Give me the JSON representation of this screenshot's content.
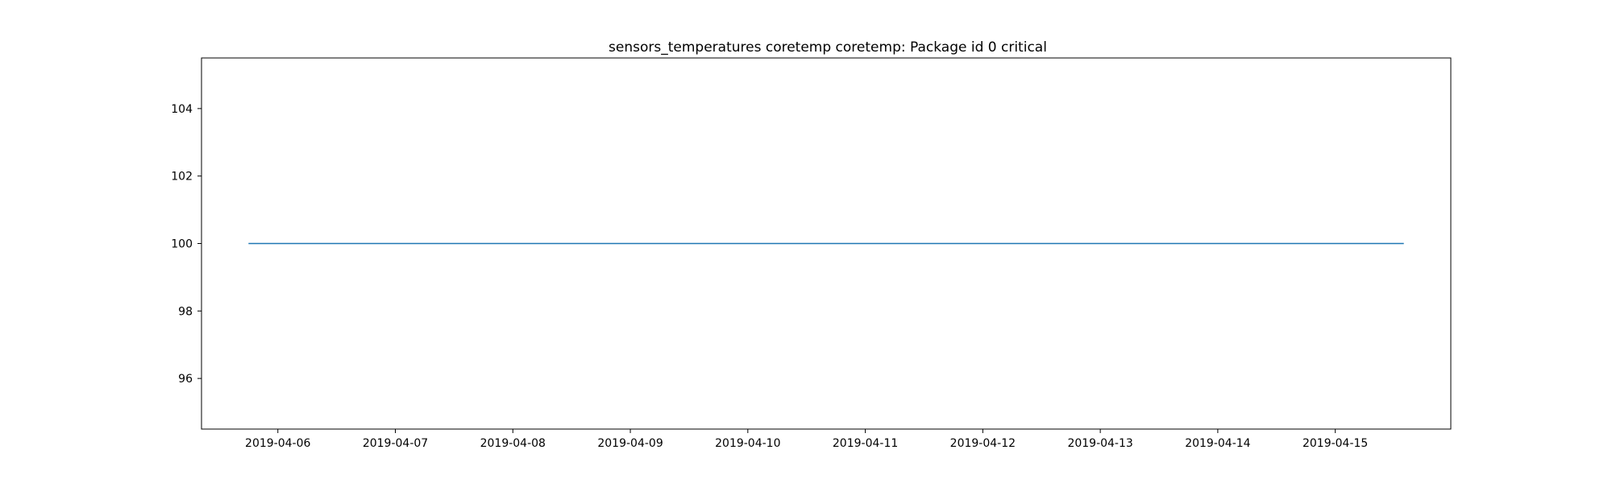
{
  "chart_data": {
    "type": "line",
    "title": "sensors_temperatures coretemp coretemp: Package id 0 critical",
    "xlabel": "",
    "ylabel": "",
    "x_tick_labels": [
      "2019-04-06",
      "2019-04-07",
      "2019-04-08",
      "2019-04-09",
      "2019-04-10",
      "2019-04-11",
      "2019-04-12",
      "2019-04-13",
      "2019-04-14",
      "2019-04-15"
    ],
    "y_tick_labels": [
      "96",
      "98",
      "100",
      "102",
      "104"
    ],
    "y_ticks": [
      96,
      98,
      100,
      102,
      104
    ],
    "xlim": [
      "2019-04-05T08:24",
      "2019-04-15T23:36"
    ],
    "ylim": [
      94.5,
      105.5
    ],
    "grid": false,
    "series": [
      {
        "color": "#1f77b4",
        "points": [
          {
            "x": "2019-04-05T18:00",
            "y": 100
          },
          {
            "x": "2019-04-15T14:00",
            "y": 100
          }
        ]
      }
    ]
  }
}
